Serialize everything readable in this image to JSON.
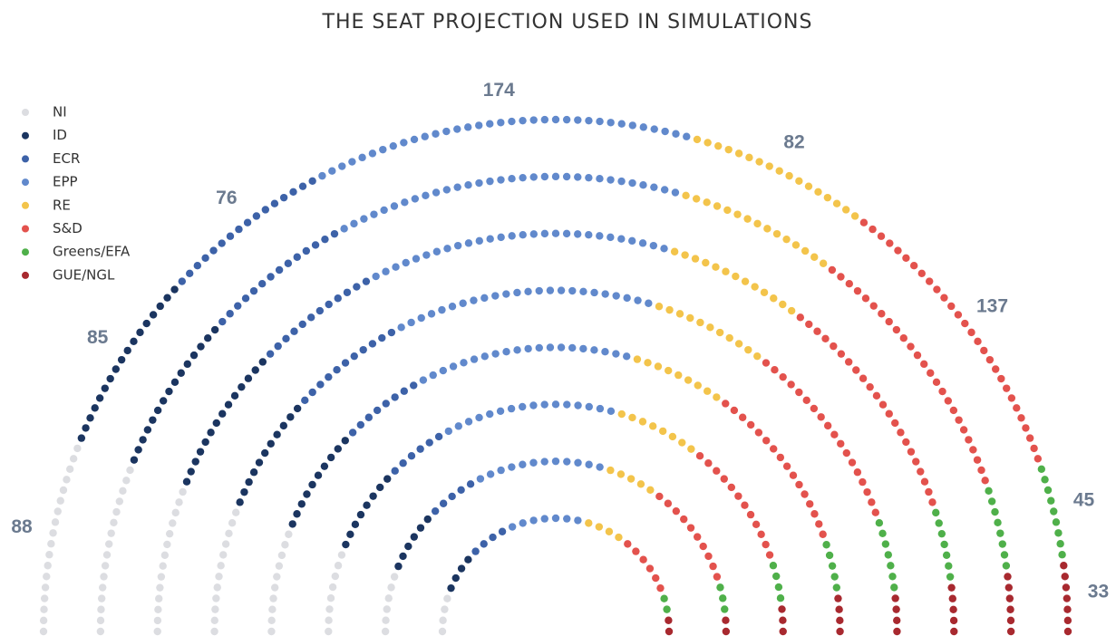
{
  "chart_data": {
    "type": "parliament",
    "title": "THE SEAT PROJECTION USED IN SIMULATIONS",
    "categories": [
      "NI",
      "ID",
      "ECR",
      "EPP",
      "RE",
      "S&D",
      "Greens/EFA",
      "GUE/NGL"
    ],
    "values": [
      88,
      85,
      76,
      174,
      82,
      137,
      45,
      33
    ],
    "colors": [
      "#dcdde1",
      "#1b3560",
      "#3d62a8",
      "#6189cc",
      "#f3c44b",
      "#e3524d",
      "#4fb04a",
      "#a8292f"
    ],
    "legend": "top-left"
  }
}
